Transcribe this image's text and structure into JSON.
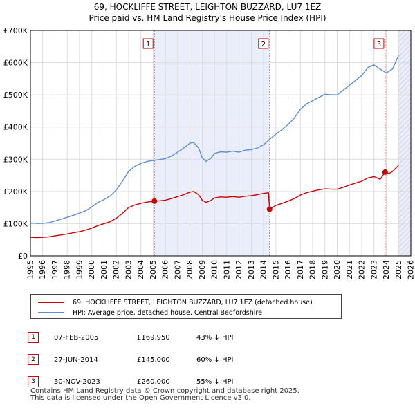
{
  "header": {
    "title": "69, HOCKLIFFE STREET, LEIGHTON BUZZARD, LU7 1EZ",
    "subtitle": "Price paid vs. HM Land Registry's House Price Index (HPI)"
  },
  "legend": {
    "items": [
      {
        "label": "69, HOCKLIFFE STREET, LEIGHTON BUZZARD, LU7 1EZ (detached house)",
        "color": "#cc0000"
      },
      {
        "label": "HPI: Average price, detached house, Central Bedfordshire",
        "color": "#5b8ed6"
      }
    ]
  },
  "transactions": [
    {
      "num": "1",
      "date": "07-FEB-2005",
      "price": "£169,950",
      "pct": "43% ↓ HPI"
    },
    {
      "num": "2",
      "date": "27-JUN-2014",
      "price": "£145,000",
      "pct": "60% ↓ HPI"
    },
    {
      "num": "3",
      "date": "30-NOV-2023",
      "price": "£260,000",
      "pct": "55% ↓ HPI"
    }
  ],
  "footer": {
    "line1": "Contains HM Land Registry data © Crown copyright and database right 2025.",
    "line2": "This data is licensed under the Open Government Licence v3.0."
  },
  "chart_data": {
    "type": "line",
    "title": "69, HOCKLIFFE STREET, LEIGHTON BUZZARD, LU7 1EZ",
    "subtitle": "Price paid vs. HM Land Registry's House Price Index (HPI)",
    "xlabel": "",
    "ylabel": "",
    "xlim": [
      1995,
      2026
    ],
    "ylim": [
      0,
      700000
    ],
    "x_ticks": [
      1995,
      1996,
      1997,
      1998,
      1999,
      2000,
      2001,
      2002,
      2003,
      2004,
      2005,
      2006,
      2007,
      2008,
      2009,
      2010,
      2011,
      2012,
      2013,
      2014,
      2015,
      2016,
      2017,
      2018,
      2019,
      2020,
      2021,
      2022,
      2023,
      2024,
      2025,
      2026
    ],
    "y_ticks": [
      {
        "value": 0,
        "label": "£0"
      },
      {
        "value": 100000,
        "label": "£100K"
      },
      {
        "value": 200000,
        "label": "£200K"
      },
      {
        "value": 300000,
        "label": "£300K"
      },
      {
        "value": 400000,
        "label": "£400K"
      },
      {
        "value": 500000,
        "label": "£500K"
      },
      {
        "value": 600000,
        "label": "£600K"
      },
      {
        "value": 700000,
        "label": "£700K"
      }
    ],
    "grid": true,
    "shaded_periods": [
      [
        2005.1,
        2014.49
      ],
      [
        2025.0,
        2026.0
      ]
    ],
    "hatched_period": [
      2025.0,
      2026.0
    ],
    "series": [
      {
        "name": "HPI: Average price, detached house, Central Bedfordshire",
        "color": "#5b8ed6",
        "points": [
          [
            1995.0,
            102000
          ],
          [
            1995.5,
            101000
          ],
          [
            1996.0,
            101000
          ],
          [
            1996.5,
            103000
          ],
          [
            1997.0,
            108000
          ],
          [
            1997.5,
            114000
          ],
          [
            1998.0,
            120000
          ],
          [
            1998.5,
            126000
          ],
          [
            1999.0,
            133000
          ],
          [
            1999.5,
            140000
          ],
          [
            2000.0,
            152000
          ],
          [
            2000.5,
            166000
          ],
          [
            2001.0,
            175000
          ],
          [
            2001.5,
            186000
          ],
          [
            2002.0,
            205000
          ],
          [
            2002.5,
            232000
          ],
          [
            2003.0,
            262000
          ],
          [
            2003.5,
            278000
          ],
          [
            2004.0,
            287000
          ],
          [
            2004.5,
            293000
          ],
          [
            2005.0,
            296000
          ],
          [
            2005.5,
            299000
          ],
          [
            2006.0,
            302000
          ],
          [
            2006.5,
            310000
          ],
          [
            2007.0,
            322000
          ],
          [
            2007.5,
            335000
          ],
          [
            2008.0,
            350000
          ],
          [
            2008.3,
            352000
          ],
          [
            2008.7,
            335000
          ],
          [
            2009.0,
            305000
          ],
          [
            2009.3,
            293000
          ],
          [
            2009.7,
            303000
          ],
          [
            2010.0,
            318000
          ],
          [
            2010.5,
            323000
          ],
          [
            2011.0,
            322000
          ],
          [
            2011.5,
            325000
          ],
          [
            2012.0,
            322000
          ],
          [
            2012.5,
            328000
          ],
          [
            2013.0,
            330000
          ],
          [
            2013.5,
            335000
          ],
          [
            2014.0,
            345000
          ],
          [
            2014.5,
            362000
          ],
          [
            2015.0,
            378000
          ],
          [
            2015.5,
            392000
          ],
          [
            2016.0,
            408000
          ],
          [
            2016.5,
            428000
          ],
          [
            2017.0,
            455000
          ],
          [
            2017.5,
            472000
          ],
          [
            2018.0,
            482000
          ],
          [
            2018.5,
            492000
          ],
          [
            2019.0,
            502000
          ],
          [
            2019.5,
            500000
          ],
          [
            2020.0,
            500000
          ],
          [
            2020.5,
            515000
          ],
          [
            2021.0,
            530000
          ],
          [
            2021.5,
            545000
          ],
          [
            2022.0,
            560000
          ],
          [
            2022.5,
            585000
          ],
          [
            2023.0,
            593000
          ],
          [
            2023.5,
            580000
          ],
          [
            2024.0,
            568000
          ],
          [
            2024.5,
            580000
          ],
          [
            2025.0,
            622000
          ]
        ]
      },
      {
        "name": "69, HOCKLIFFE STREET, LEIGHTON BUZZARD, LU7 1EZ (detached house)",
        "color": "#cc0000",
        "points": [
          [
            1995.0,
            58000
          ],
          [
            1995.5,
            57000
          ],
          [
            1996.0,
            57500
          ],
          [
            1996.5,
            59000
          ],
          [
            1997.0,
            62000
          ],
          [
            1997.5,
            65000
          ],
          [
            1998.0,
            68000
          ],
          [
            1998.5,
            72000
          ],
          [
            1999.0,
            75000
          ],
          [
            1999.5,
            80000
          ],
          [
            2000.0,
            86000
          ],
          [
            2000.5,
            94000
          ],
          [
            2001.0,
            100000
          ],
          [
            2001.5,
            106000
          ],
          [
            2002.0,
            117000
          ],
          [
            2002.5,
            132000
          ],
          [
            2003.0,
            150000
          ],
          [
            2003.5,
            158000
          ],
          [
            2004.0,
            163000
          ],
          [
            2004.5,
            167000
          ],
          [
            2005.1,
            169950
          ],
          [
            2005.5,
            171000
          ],
          [
            2006.0,
            173000
          ],
          [
            2006.5,
            178000
          ],
          [
            2007.0,
            184000
          ],
          [
            2007.5,
            190000
          ],
          [
            2008.0,
            198000
          ],
          [
            2008.3,
            200000
          ],
          [
            2008.7,
            190000
          ],
          [
            2009.0,
            173000
          ],
          [
            2009.3,
            166000
          ],
          [
            2009.7,
            172000
          ],
          [
            2010.0,
            180000
          ],
          [
            2010.5,
            183000
          ],
          [
            2011.0,
            182000
          ],
          [
            2011.5,
            184000
          ],
          [
            2012.0,
            182000
          ],
          [
            2012.5,
            185000
          ],
          [
            2013.0,
            187000
          ],
          [
            2013.5,
            190000
          ],
          [
            2014.0,
            194000
          ],
          [
            2014.4,
            196000
          ],
          [
            2014.49,
            145000
          ],
          [
            2014.8,
            152000
          ],
          [
            2015.0,
            157000
          ],
          [
            2015.5,
            163000
          ],
          [
            2016.0,
            170000
          ],
          [
            2016.5,
            178000
          ],
          [
            2017.0,
            189000
          ],
          [
            2017.5,
            196000
          ],
          [
            2018.0,
            201000
          ],
          [
            2018.5,
            205000
          ],
          [
            2019.0,
            208000
          ],
          [
            2019.5,
            207000
          ],
          [
            2020.0,
            207000
          ],
          [
            2020.5,
            213000
          ],
          [
            2021.0,
            220000
          ],
          [
            2021.5,
            226000
          ],
          [
            2022.0,
            232000
          ],
          [
            2022.5,
            242000
          ],
          [
            2023.0,
            246000
          ],
          [
            2023.5,
            238000
          ],
          [
            2023.91,
            260000
          ],
          [
            2024.2,
            255000
          ],
          [
            2024.5,
            262000
          ],
          [
            2025.0,
            281000
          ]
        ]
      }
    ],
    "markers": [
      {
        "label": "1",
        "x": 2005.1,
        "y": 169950
      },
      {
        "label": "2",
        "x": 2014.49,
        "y": 145000
      },
      {
        "label": "3",
        "x": 2023.91,
        "y": 260000
      }
    ]
  }
}
